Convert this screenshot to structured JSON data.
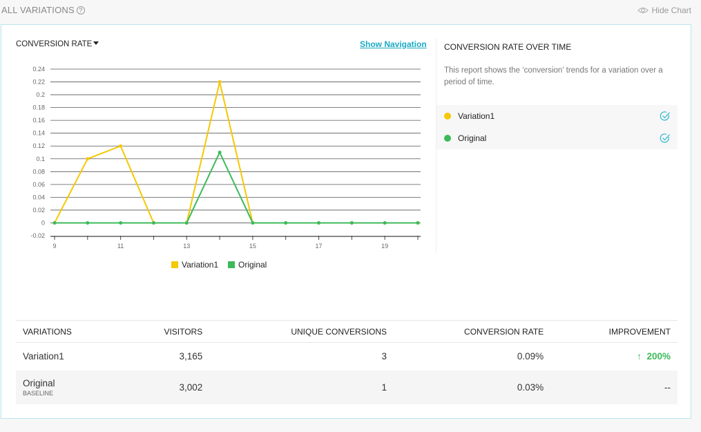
{
  "header": {
    "title": "ALL VARIATIONS",
    "help_icon": "question-circle-icon",
    "hide_chart": "Hide Chart",
    "hide_icon": "eye-icon"
  },
  "chart_panel": {
    "metric": "CONVERSION RATE",
    "show_navigation": "Show Navigation"
  },
  "side": {
    "title": "CONVERSION RATE OVER TIME",
    "description": "This report shows the ‘conversion’ trends for a variation over a period of time.",
    "legend": [
      {
        "name": "Variation1",
        "color": "#f5c800"
      },
      {
        "name": "Original",
        "color": "#3cba5a"
      }
    ]
  },
  "chart_data": {
    "type": "line",
    "x": [
      9,
      10,
      11,
      12,
      13,
      14,
      15,
      16,
      17,
      18,
      19,
      20
    ],
    "xticks": [
      "9",
      "11",
      "13",
      "15",
      "17",
      "19"
    ],
    "yticks": [
      "0.24",
      "0.22",
      "0.2",
      "0.18",
      "0.16",
      "0.14",
      "0.12",
      "0.1",
      "0.08",
      "0.06",
      "0.04",
      "0.02",
      "0",
      "-0.02"
    ],
    "ylim": [
      -0.02,
      0.24
    ],
    "grid": true,
    "legend_placement": "bottom",
    "series": [
      {
        "name": "Variation1",
        "color": "#f5c800",
        "values": [
          0,
          0.1,
          0.12,
          0,
          0,
          0.22,
          0,
          0,
          0,
          0,
          0,
          0
        ]
      },
      {
        "name": "Original",
        "color": "#3cba5a",
        "values": [
          0,
          0,
          0,
          0,
          0,
          0.11,
          0,
          0,
          0,
          0,
          0,
          0
        ]
      }
    ]
  },
  "table": {
    "columns": [
      "VARIATIONS",
      "VISITORS",
      "UNIQUE CONVERSIONS",
      "CONVERSION RATE",
      "IMPROVEMENT"
    ],
    "rows": [
      {
        "name": "Variation1",
        "visitors": "3,165",
        "conversions": "3",
        "rate": "0.09%",
        "improvement": "200%",
        "arrow": "↑"
      },
      {
        "name": "Original",
        "badge": "BASELINE",
        "visitors": "3,002",
        "conversions": "1",
        "rate": "0.03%",
        "improvement": "--"
      }
    ]
  }
}
